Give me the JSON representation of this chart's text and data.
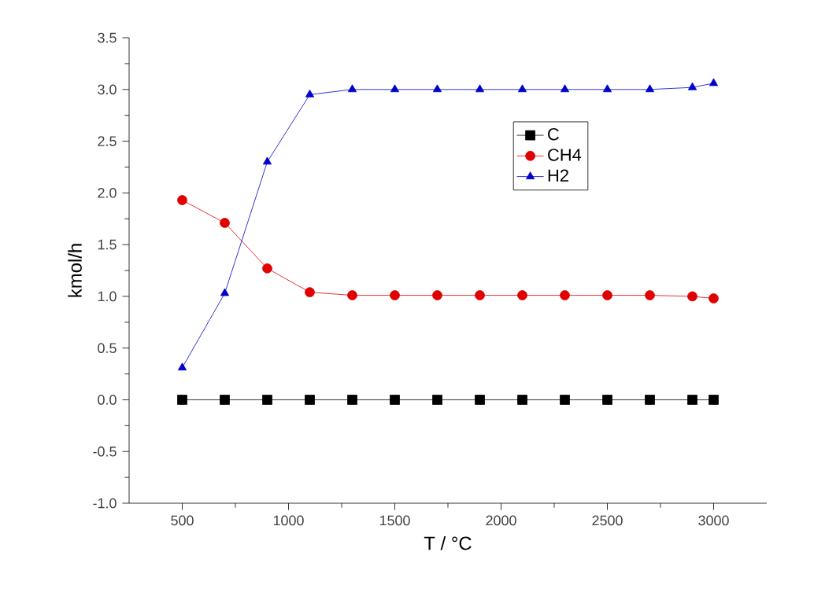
{
  "chart_data": {
    "type": "line",
    "xlabel": "T / °C",
    "ylabel": "kmol/h",
    "x": [
      500,
      700,
      900,
      1100,
      1300,
      1500,
      1700,
      1900,
      2100,
      2300,
      2500,
      2700,
      2900,
      3000
    ],
    "series": [
      {
        "name": "C",
        "color": "#000000",
        "marker": "square",
        "values": [
          0,
          0,
          0,
          0,
          0,
          0,
          0,
          0,
          0,
          0,
          0,
          0,
          0,
          0
        ]
      },
      {
        "name": "CH4",
        "color": "#e00000",
        "marker": "circle",
        "values": [
          1.93,
          1.71,
          1.27,
          1.04,
          1.01,
          1.01,
          1.01,
          1.01,
          1.01,
          1.01,
          1.01,
          1.01,
          1.0,
          0.98
        ]
      },
      {
        "name": "H2",
        "color": "#0000cc",
        "marker": "triangle",
        "values": [
          0.31,
          1.03,
          2.3,
          2.95,
          3.0,
          3.0,
          3.0,
          3.0,
          3.0,
          3.0,
          3.0,
          3.0,
          3.02,
          3.06
        ]
      }
    ],
    "xlim": [
      250,
      3250
    ],
    "ylim": [
      -1.0,
      3.5
    ],
    "xticks": [
      500,
      1000,
      1500,
      2000,
      2500,
      3000
    ],
    "yticks": [
      {
        "value": -1.0,
        "label": "-1.0"
      },
      {
        "value": -0.5,
        "label": "-0.5"
      },
      {
        "value": 0.0,
        "label": "0.0"
      },
      {
        "value": 0.5,
        "label": "0.5"
      },
      {
        "value": 1.0,
        "label": "1.0"
      },
      {
        "value": 1.5,
        "label": "1.5"
      },
      {
        "value": 2.0,
        "label": "2.0"
      },
      {
        "value": 2.5,
        "label": "2.5"
      },
      {
        "value": 3.0,
        "label": "3.0"
      },
      {
        "value": 3.5,
        "label": "3.5"
      }
    ],
    "grid": false,
    "legend": "top right",
    "line_style": "solid"
  }
}
